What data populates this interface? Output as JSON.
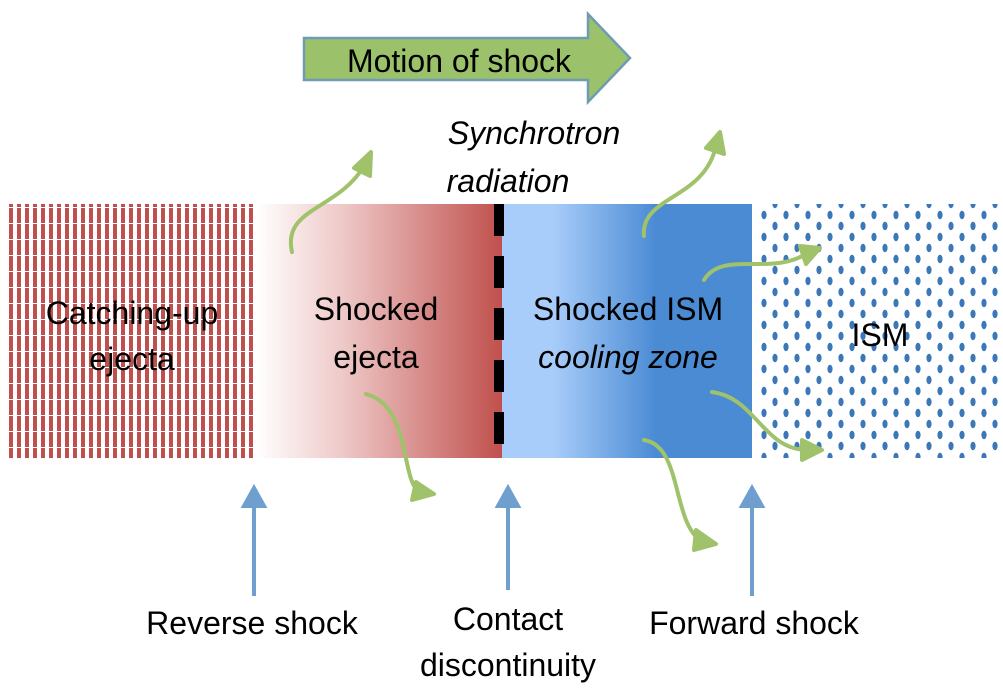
{
  "title_arrow": {
    "label": "Motion of shock",
    "fill": "#9bc26a",
    "stroke": "#6f9bb3"
  },
  "radiation_label": {
    "line1": "Synchrotron",
    "line2": "radiation"
  },
  "regions": [
    {
      "line1": "Catching-up",
      "line2": "ejecta",
      "color": "#c0504d"
    },
    {
      "line1": "Shocked",
      "line2": "ejecta",
      "color": "#c0504d"
    },
    {
      "line1": "Shocked ISM",
      "line2": "cooling zone",
      "color": "#4a8bd4"
    },
    {
      "line1": "ISM",
      "line2": "",
      "color": "#3c78b8"
    }
  ],
  "boundaries": [
    {
      "line1": "Reverse shock",
      "line2": ""
    },
    {
      "line1": "Contact",
      "line2": "discontinuity"
    },
    {
      "line1": "Forward shock",
      "line2": ""
    }
  ],
  "colors": {
    "pointer_arrow": "#6f9fcf",
    "emission_arrow": "#9fc26a",
    "contact_dash": "#000000"
  }
}
